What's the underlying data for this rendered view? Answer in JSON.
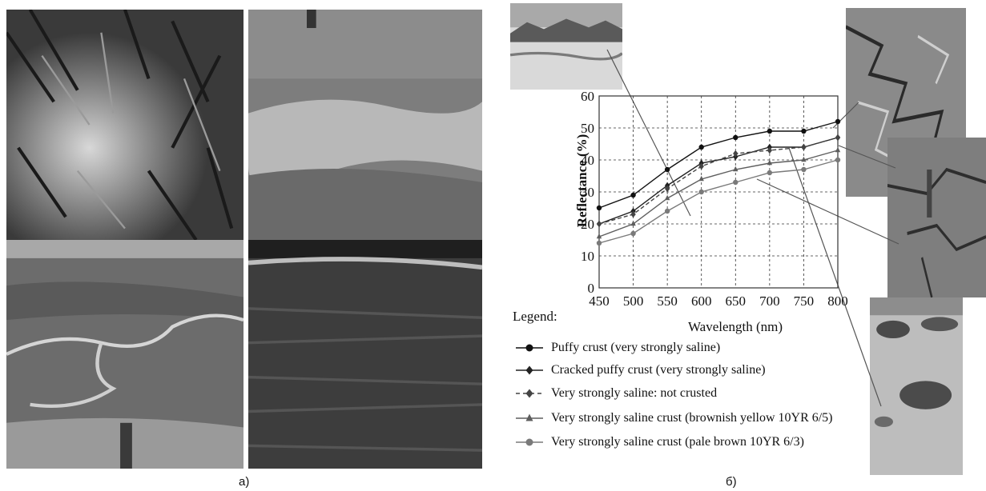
{
  "panel_labels": {
    "a": "a)",
    "b": "б)"
  },
  "colors": {
    "puffy": "#111111",
    "cracked": "#222222",
    "not_crusted": "#444444",
    "brownish": "#5e5e5e",
    "pale": "#7a7a7a",
    "grid": "#333333",
    "leader": "#555555"
  },
  "chart_data": {
    "type": "line",
    "xlabel": "Wavelength (nm)",
    "ylabel": "Reflectance (%)",
    "x": [
      450,
      500,
      550,
      600,
      650,
      700,
      750,
      800
    ],
    "xlim": [
      450,
      800
    ],
    "ylim": [
      0,
      60
    ],
    "xticks": [
      "450",
      "500",
      "550",
      "600",
      "650",
      "700",
      "750",
      "800"
    ],
    "yticks": [
      "0",
      "10",
      "20",
      "30",
      "40",
      "50",
      "60"
    ],
    "grid": true,
    "legend_title": "Legend:",
    "legend_position": "bottom-left",
    "series": [
      {
        "key": "puffy",
        "name": "Puffy crust (very strongly saline)",
        "marker": "circle",
        "dash": "solid",
        "values": [
          25,
          29,
          37,
          44,
          47,
          49,
          49,
          52
        ]
      },
      {
        "key": "cracked",
        "name": "Cracked puffy crust (very strongly saline)",
        "marker": "diamond",
        "dash": "solid",
        "values": [
          20,
          24,
          32,
          39,
          41,
          44,
          44,
          47
        ]
      },
      {
        "key": "not_crusted",
        "name": "Very strongly saline: not crusted",
        "marker": "diamond",
        "dash": "dashed",
        "values": [
          20,
          23,
          31,
          38,
          42,
          43,
          44,
          47
        ]
      },
      {
        "key": "brownish",
        "name": "Very strongly saline crust (brownish yellow 10YR 6/5)",
        "marker": "triangle",
        "dash": "solid",
        "values": [
          16,
          20,
          28,
          34,
          37,
          39,
          40,
          43
        ]
      },
      {
        "key": "pale",
        "name": "Very strongly saline crust (pale brown 10YR 6/3)",
        "marker": "circle",
        "dash": "solid",
        "values": [
          14,
          17,
          24,
          30,
          33,
          36,
          37,
          40
        ]
      }
    ]
  }
}
